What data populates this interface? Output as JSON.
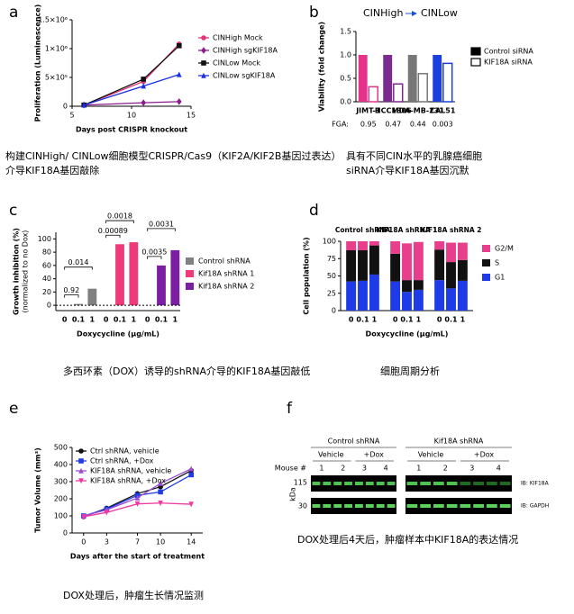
{
  "chart_data": [
    {
      "panel": "a",
      "type": "line",
      "xlabel": "Days post CRISPR knockout",
      "ylabel": "Proliferation (Luminescence)",
      "x": [
        6,
        11,
        14
      ],
      "xlim": [
        5,
        15
      ],
      "xticks": [
        5,
        10,
        15
      ],
      "ylim": [
        0,
        1500000
      ],
      "yticks": [
        0,
        {
          "value": 500000,
          "label": "5×10⁵"
        },
        {
          "value": 1000000,
          "label": "1×10⁶"
        },
        {
          "value": 1500000,
          "label": "1.5×10⁶"
        }
      ],
      "series": [
        {
          "name": "CINHigh Mock",
          "color": "#e0337a",
          "marker": "circle",
          "values": [
            20000,
            430000,
            1080000
          ]
        },
        {
          "name": "CINHigh sgKIF18A",
          "color": "#8b1a8b",
          "marker": "diamond",
          "values": [
            20000,
            60000,
            80000
          ]
        },
        {
          "name": "CINLow Mock",
          "color": "#111111",
          "marker": "square",
          "values": [
            20000,
            470000,
            1050000
          ]
        },
        {
          "name": "CINLow sgKIF18A",
          "color": "#1a2fe0",
          "marker": "triangle",
          "values": [
            20000,
            350000,
            550000
          ]
        }
      ]
    },
    {
      "panel": "b",
      "type": "bar",
      "ylabel": "Viability (fold change)",
      "annotations": [
        "CINHigh",
        "CINLow"
      ],
      "categories": [
        "JIMT-1",
        "HCC1806",
        "MDA-MB-231",
        "CAL51"
      ],
      "category_colors": [
        "#e6338a",
        "#7b2a8f",
        "#777777",
        "#1c3fe0"
      ],
      "fga_label": "FGA:",
      "fga": [
        0.95,
        0.47,
        0.44,
        0.003
      ],
      "ylim": [
        0,
        1.5
      ],
      "yticks": [
        {
          "value": 0,
          "label": "0.0"
        },
        0.5,
        {
          "value": 1,
          "label": "1.0"
        },
        1.5
      ],
      "series": [
        {
          "name": "Control siRNA",
          "color": "#000000",
          "values": [
            1.0,
            1.0,
            1.0,
            1.0
          ]
        },
        {
          "name": "KIF18A siRNA",
          "color": "#000000",
          "hollow": true,
          "values": [
            0.32,
            0.38,
            0.6,
            0.82
          ]
        }
      ]
    },
    {
      "panel": "c",
      "type": "bar",
      "xlabel": "Doxycycline (µg/mL)",
      "ylabel": [
        "Growth inhibition (%)",
        "(normalized to no Dox)"
      ],
      "categories": [
        "0",
        "0.1",
        "1"
      ],
      "ylim": [
        -8,
        110
      ],
      "yticks": [
        0,
        20,
        40,
        60,
        80,
        100
      ],
      "series": [
        {
          "name": "Control shRNA",
          "color": "#808080",
          "values": [
            0,
            2,
            25
          ]
        },
        {
          "name": "Kif18A shRNA 1",
          "color": "#ee3a7a",
          "values": [
            0,
            92,
            95
          ]
        },
        {
          "name": "Kif18A shRNA 2",
          "color": "#7b1fa2",
          "values": [
            0,
            60,
            83
          ]
        }
      ],
      "comparisons": [
        {
          "series": 0,
          "from": 0,
          "to": 1,
          "label": "0.92"
        },
        {
          "series": 0,
          "from": 0,
          "to": 2,
          "label": "0.014"
        },
        {
          "series": 1,
          "from": 0,
          "to": 1,
          "label": "0.00089"
        },
        {
          "series": 1,
          "from": 0,
          "to": 2,
          "label": "0.0018"
        },
        {
          "series": 2,
          "from": 0,
          "to": 1,
          "label": "0.0035"
        },
        {
          "series": 2,
          "from": 0,
          "to": 2,
          "label": "0.0031"
        }
      ]
    },
    {
      "panel": "d",
      "type": "stacked-bar",
      "xlabel": "Doxycycline (µg/mL)",
      "ylabel": "Cell population (%)",
      "groups": [
        "Control shRNA",
        "KIF18A shRNA 1",
        "KIF18A shRNA 2"
      ],
      "categories": [
        "0",
        "0.1",
        "1",
        "0",
        "0.1",
        "1",
        "0",
        "0.1",
        "1"
      ],
      "ylim": [
        0,
        100
      ],
      "yticks": [
        0,
        25,
        50,
        75,
        100
      ],
      "series": [
        {
          "name": "G2/M",
          "color": "#e83e8c",
          "values": [
            13,
            13,
            6,
            18,
            53,
            55,
            12,
            28,
            25
          ]
        },
        {
          "name": "S",
          "color": "#111111",
          "values": [
            45,
            44,
            42,
            40,
            17,
            14,
            44,
            38,
            30
          ]
        },
        {
          "name": "G1",
          "color": "#1f3be8",
          "values": [
            42,
            43,
            52,
            42,
            27,
            30,
            44,
            32,
            43
          ]
        }
      ]
    },
    {
      "panel": "e",
      "type": "line",
      "xlabel": "Days after the start of treatment",
      "ylabel": "Tumor Volume (mm³)",
      "x": [
        0,
        3,
        7,
        10,
        14
      ],
      "xlim": [
        -1.5,
        15.5
      ],
      "xticks": [
        0,
        3,
        7,
        10,
        14
      ],
      "ylim": [
        0,
        500
      ],
      "yticks": [
        0,
        100,
        200,
        300,
        400,
        500
      ],
      "series": [
        {
          "name": "Ctrl shRNA, vehicle",
          "color": "#111111",
          "marker": "circle",
          "values": [
            95,
            145,
            230,
            270,
            365
          ]
        },
        {
          "name": "Ctrl shRNA, +Dox",
          "color": "#1f3be8",
          "marker": "square",
          "values": [
            100,
            140,
            220,
            240,
            340
          ]
        },
        {
          "name": "KIF18A shRNA, vehicle",
          "color": "#9b4fd0",
          "marker": "triangle",
          "values": [
            100,
            135,
            205,
            290,
            375
          ]
        },
        {
          "name": "KIF18A shRNA, +Dox",
          "color": "#ee3aa0",
          "marker": "triangle-down",
          "values": [
            95,
            120,
            170,
            175,
            168
          ]
        }
      ]
    }
  ],
  "blot": {
    "panel": "f",
    "groups": [
      "Control shRNA",
      "Kif18A shRNA"
    ],
    "treatments": [
      "Vehicle",
      "+Dox",
      "Vehicle",
      "+Dox"
    ],
    "mouse_label": "Mouse #",
    "mice": [
      "1",
      "2",
      "3",
      "4",
      "1",
      "2",
      "3",
      "4"
    ],
    "markers": [
      "115",
      "30"
    ],
    "unit": "kDa",
    "antibodies": [
      "IB: KIF18A",
      "IB: GAPDH"
    ]
  },
  "captions": [
    [
      "构建CINHigh/ CINLow细胞模型CRISPR/Cas9（KIF2A/KIF2B基因过表达）",
      "介导KIF18A基因敲除"
    ],
    [
      "具有不同CIN水平的乳腺癌细胞",
      "siRNA介导KIF18A基因沉默"
    ],
    [
      "多西环素（DOX）诱导的shRNA介导的KIF18A基因敲低"
    ],
    [
      "细胞周期分析"
    ],
    [
      "DOX处理后，肿瘤生长情况监测"
    ],
    [
      "DOX处理后4天后，肿瘤样本中KIF18A的表达情况"
    ]
  ]
}
